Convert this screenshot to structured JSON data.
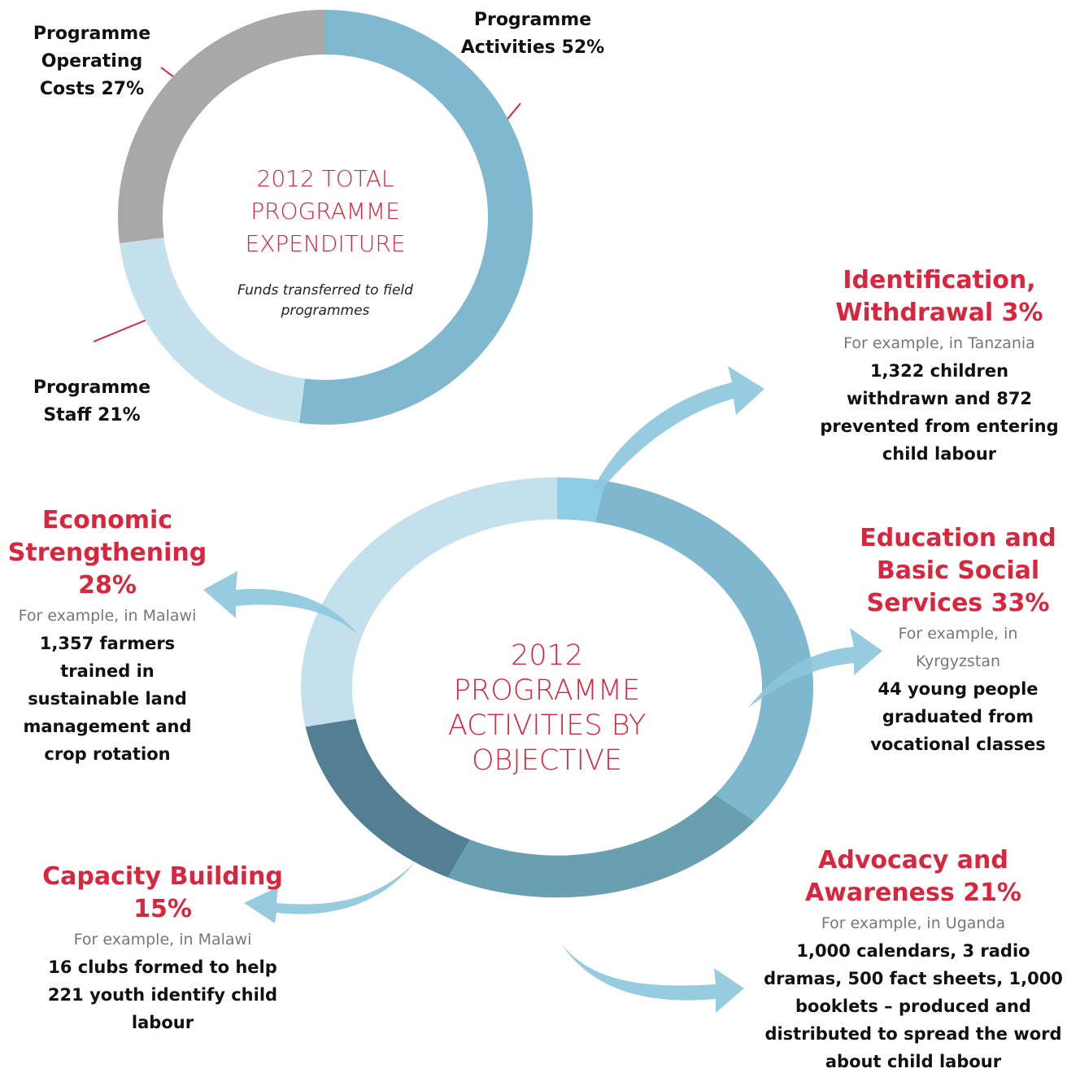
{
  "chart_data": [
    {
      "type": "donut",
      "title": "2012 TOTAL PROGRAMME EXPENDITURE",
      "subtitle": "Funds transferred to field programmes",
      "categories": [
        "Programme Activities",
        "Programme Staff",
        "Programme Operating Costs"
      ],
      "values": [
        52,
        21,
        27
      ],
      "value_labels": [
        "52%",
        "21%",
        "27%"
      ],
      "colors": [
        "#7fb8cf",
        "#c5e1ed",
        "#a9a8a9"
      ]
    },
    {
      "type": "donut",
      "title": "2012 PROGRAMME ACTIVITIES BY OBJECTIVE",
      "categories": [
        "Identification, Withdrawal",
        "Education and Basic Social Services",
        "Advocacy and Awareness",
        "Capacity Building",
        "Economic Strengthening"
      ],
      "values": [
        3,
        33,
        21,
        15,
        28
      ],
      "value_labels": [
        "3%",
        "33%",
        "21%",
        "15%",
        "28%"
      ],
      "colors": [
        "#8ecde3",
        "#7fb7cf",
        "#6a9fb2",
        "#547f92",
        "#c3e0ec"
      ],
      "examples": [
        {
          "place": "For example, in Tanzania",
          "text": "1,322 children withdrawn and 872 prevented from entering child labour"
        },
        {
          "place": "For example, in Kyrgyzstan",
          "text": "44 young people graduated from vocational classes"
        },
        {
          "place": "For example, in Uganda",
          "text": "1,000 calendars, 3 radio dramas, 500 fact sheets, 1,000 booklets – produced and distributed to spread the word about child labour"
        },
        {
          "place": "For example, in Malawi",
          "text": "16 clubs formed to help 221 youth identify child labour"
        },
        {
          "place": "For example, in Malawi",
          "text": "1,357 farmers trained in sustainable land management and crop rotation"
        }
      ]
    }
  ]
}
